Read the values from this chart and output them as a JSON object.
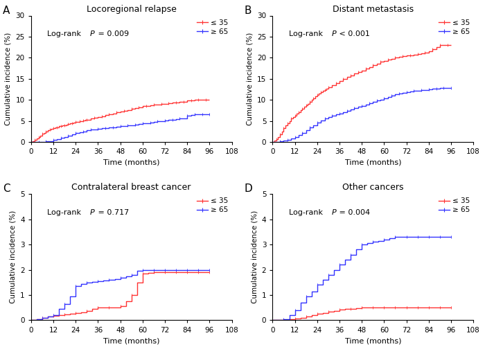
{
  "panels": [
    {
      "label": "A",
      "title": "Locoregional relapse",
      "pvalue_text_before": "Log-rank ",
      "pvalue_text_P": "P",
      "pvalue_text_after": " = 0.009",
      "ylim": [
        0,
        30
      ],
      "yticks": [
        0,
        5,
        10,
        15,
        20,
        25,
        30
      ],
      "red_x": [
        0,
        1,
        2,
        3,
        4,
        5,
        6,
        7,
        8,
        9,
        10,
        11,
        12,
        13,
        14,
        15,
        16,
        17,
        18,
        19,
        20,
        21,
        22,
        23,
        24,
        25,
        26,
        27,
        28,
        29,
        30,
        32,
        34,
        36,
        38,
        40,
        42,
        44,
        46,
        48,
        50,
        52,
        54,
        56,
        58,
        60,
        62,
        64,
        66,
        68,
        70,
        72,
        74,
        76,
        78,
        80,
        82,
        84,
        86,
        88,
        90,
        92,
        94,
        96
      ],
      "red_y": [
        0,
        0.2,
        0.5,
        0.8,
        1.2,
        1.5,
        1.9,
        2.2,
        2.5,
        2.7,
        2.9,
        3.1,
        3.2,
        3.4,
        3.5,
        3.7,
        3.8,
        3.9,
        4.0,
        4.1,
        4.3,
        4.4,
        4.5,
        4.6,
        4.7,
        4.8,
        4.9,
        5.0,
        5.1,
        5.2,
        5.3,
        5.5,
        5.7,
        5.9,
        6.1,
        6.4,
        6.6,
        6.8,
        7.0,
        7.2,
        7.4,
        7.6,
        7.8,
        8.0,
        8.2,
        8.5,
        8.6,
        8.7,
        8.8,
        8.9,
        9.0,
        9.1,
        9.2,
        9.3,
        9.4,
        9.5,
        9.6,
        9.8,
        9.9,
        10.0,
        10.0,
        10.0,
        10.0,
        10.0
      ],
      "blue_x": [
        0,
        2,
        4,
        6,
        8,
        10,
        12,
        14,
        16,
        18,
        20,
        22,
        24,
        26,
        28,
        30,
        32,
        34,
        36,
        38,
        40,
        42,
        44,
        46,
        48,
        50,
        52,
        54,
        56,
        58,
        60,
        62,
        64,
        66,
        68,
        70,
        72,
        74,
        76,
        78,
        80,
        82,
        84,
        86,
        88,
        90,
        92,
        94,
        96
      ],
      "blue_y": [
        0,
        0.0,
        0.0,
        0.05,
        0.1,
        0.2,
        0.4,
        0.6,
        0.9,
        1.2,
        1.5,
        1.8,
        2.1,
        2.3,
        2.5,
        2.7,
        2.9,
        3.0,
        3.1,
        3.2,
        3.3,
        3.4,
        3.5,
        3.6,
        3.7,
        3.8,
        3.9,
        4.0,
        4.1,
        4.2,
        4.4,
        4.5,
        4.6,
        4.8,
        4.9,
        5.0,
        5.1,
        5.2,
        5.3,
        5.4,
        5.5,
        5.6,
        6.3,
        6.4,
        6.5,
        6.5,
        6.5,
        6.5,
        6.5
      ]
    },
    {
      "label": "B",
      "title": "Distant metastasis",
      "pvalue_text_before": "Log-rank ",
      "pvalue_text_P": "P",
      "pvalue_text_after": " < 0.001",
      "ylim": [
        0,
        30
      ],
      "yticks": [
        0,
        5,
        10,
        15,
        20,
        25,
        30
      ],
      "red_x": [
        0,
        1,
        2,
        3,
        4,
        5,
        6,
        7,
        8,
        9,
        10,
        11,
        12,
        13,
        14,
        15,
        16,
        17,
        18,
        19,
        20,
        21,
        22,
        23,
        24,
        25,
        26,
        27,
        28,
        29,
        30,
        32,
        34,
        36,
        38,
        40,
        42,
        44,
        46,
        48,
        50,
        52,
        54,
        56,
        58,
        60,
        62,
        64,
        66,
        68,
        70,
        72,
        74,
        76,
        78,
        80,
        82,
        84,
        86,
        88,
        90,
        92,
        94,
        96
      ],
      "red_y": [
        0,
        0.3,
        0.7,
        1.2,
        1.8,
        2.5,
        3.2,
        3.9,
        4.5,
        5.0,
        5.5,
        5.9,
        6.3,
        6.7,
        7.1,
        7.5,
        7.9,
        8.3,
        8.7,
        9.1,
        9.5,
        10.0,
        10.4,
        10.8,
        11.2,
        11.5,
        11.8,
        12.1,
        12.4,
        12.7,
        13.0,
        13.5,
        14.0,
        14.5,
        15.0,
        15.4,
        15.8,
        16.2,
        16.6,
        17.0,
        17.4,
        17.8,
        18.2,
        18.6,
        19.0,
        19.3,
        19.6,
        19.8,
        20.0,
        20.2,
        20.4,
        20.5,
        20.6,
        20.7,
        20.8,
        21.0,
        21.2,
        21.5,
        22.0,
        22.5,
        23.0,
        23.0,
        23.0,
        23.0
      ],
      "blue_x": [
        0,
        2,
        4,
        6,
        8,
        10,
        12,
        14,
        16,
        18,
        20,
        22,
        24,
        26,
        28,
        30,
        32,
        34,
        36,
        38,
        40,
        42,
        44,
        46,
        48,
        50,
        52,
        54,
        56,
        58,
        60,
        62,
        64,
        66,
        68,
        70,
        72,
        74,
        76,
        78,
        80,
        82,
        84,
        86,
        88,
        90,
        92,
        94,
        96
      ],
      "blue_y": [
        0,
        0.05,
        0.15,
        0.3,
        0.5,
        0.8,
        1.2,
        1.7,
        2.2,
        2.8,
        3.4,
        4.0,
        4.6,
        5.1,
        5.5,
        5.9,
        6.2,
        6.5,
        6.8,
        7.1,
        7.4,
        7.7,
        8.0,
        8.3,
        8.6,
        8.9,
        9.2,
        9.5,
        9.8,
        10.1,
        10.4,
        10.7,
        11.0,
        11.3,
        11.5,
        11.7,
        11.9,
        12.0,
        12.1,
        12.2,
        12.3,
        12.4,
        12.5,
        12.6,
        12.7,
        12.8,
        12.8,
        12.8,
        12.8
      ]
    },
    {
      "label": "C",
      "title": "Contralateral breast cancer",
      "pvalue_text_before": "Log-rank ",
      "pvalue_text_P": "P",
      "pvalue_text_after": " = 0.717",
      "ylim": [
        0,
        5
      ],
      "yticks": [
        0,
        1,
        2,
        3,
        4,
        5
      ],
      "red_x": [
        0,
        3,
        6,
        9,
        12,
        15,
        18,
        21,
        24,
        27,
        30,
        33,
        36,
        39,
        42,
        45,
        48,
        51,
        54,
        57,
        60,
        63,
        66,
        69,
        72,
        75,
        78,
        81,
        84,
        87,
        90,
        93,
        96
      ],
      "red_y": [
        0,
        0.05,
        0.1,
        0.15,
        0.18,
        0.2,
        0.22,
        0.25,
        0.28,
        0.32,
        0.38,
        0.45,
        0.5,
        0.5,
        0.5,
        0.52,
        0.55,
        0.75,
        1.0,
        1.5,
        1.85,
        1.88,
        1.9,
        1.9,
        1.9,
        1.9,
        1.9,
        1.9,
        1.9,
        1.9,
        1.9,
        1.9,
        1.9
      ],
      "blue_x": [
        0,
        3,
        6,
        9,
        12,
        15,
        18,
        21,
        24,
        27,
        30,
        33,
        36,
        39,
        42,
        45,
        48,
        51,
        54,
        57,
        60,
        63,
        66,
        69,
        72,
        75,
        78,
        81,
        84,
        87,
        90,
        93,
        96
      ],
      "blue_y": [
        0,
        0.05,
        0.1,
        0.15,
        0.2,
        0.45,
        0.65,
        0.95,
        1.35,
        1.45,
        1.5,
        1.52,
        1.55,
        1.57,
        1.6,
        1.63,
        1.68,
        1.73,
        1.8,
        1.95,
        2.0,
        2.0,
        2.0,
        2.0,
        2.0,
        2.0,
        2.0,
        2.0,
        2.0,
        2.0,
        2.0,
        2.0,
        2.0
      ]
    },
    {
      "label": "D",
      "title": "Other cancers",
      "pvalue_text_before": "Log-rank ",
      "pvalue_text_P": "P",
      "pvalue_text_after": " = 0.004",
      "ylim": [
        0,
        5
      ],
      "yticks": [
        0,
        1,
        2,
        3,
        4,
        5
      ],
      "red_x": [
        0,
        3,
        6,
        9,
        12,
        15,
        18,
        21,
        24,
        27,
        30,
        33,
        36,
        39,
        42,
        45,
        48,
        51,
        54,
        57,
        60,
        63,
        66,
        69,
        72,
        75,
        78,
        81,
        84,
        87,
        90,
        93,
        96
      ],
      "red_y": [
        0,
        0.0,
        0.0,
        0.03,
        0.06,
        0.1,
        0.15,
        0.2,
        0.25,
        0.3,
        0.35,
        0.38,
        0.42,
        0.44,
        0.46,
        0.48,
        0.5,
        0.5,
        0.5,
        0.5,
        0.5,
        0.5,
        0.5,
        0.5,
        0.5,
        0.5,
        0.5,
        0.5,
        0.5,
        0.5,
        0.5,
        0.5,
        0.5
      ],
      "blue_x": [
        0,
        3,
        6,
        9,
        12,
        15,
        18,
        21,
        24,
        27,
        30,
        33,
        36,
        39,
        42,
        45,
        48,
        51,
        54,
        57,
        60,
        63,
        66,
        69,
        72,
        75,
        78,
        81,
        84,
        87,
        90,
        93,
        96
      ],
      "blue_y": [
        0,
        0.0,
        0.05,
        0.2,
        0.4,
        0.7,
        0.95,
        1.15,
        1.4,
        1.6,
        1.8,
        2.0,
        2.2,
        2.4,
        2.6,
        2.8,
        3.0,
        3.05,
        3.1,
        3.15,
        3.2,
        3.25,
        3.3,
        3.3,
        3.3,
        3.3,
        3.3,
        3.3,
        3.3,
        3.3,
        3.3,
        3.3,
        3.3
      ]
    }
  ],
  "red_color": "#FF3333",
  "blue_color": "#3333FF",
  "red_label": "≤ 35",
  "blue_label": "≥ 65",
  "xlabel": "Time (months)",
  "ylabel": "Cumulative incidence (%)",
  "xticks": [
    0,
    12,
    24,
    36,
    48,
    60,
    72,
    84,
    96,
    108
  ],
  "xlim": [
    0,
    108
  ],
  "linewidth": 1.0,
  "pvalue_x": 0.08,
  "pvalue_y": 0.88
}
